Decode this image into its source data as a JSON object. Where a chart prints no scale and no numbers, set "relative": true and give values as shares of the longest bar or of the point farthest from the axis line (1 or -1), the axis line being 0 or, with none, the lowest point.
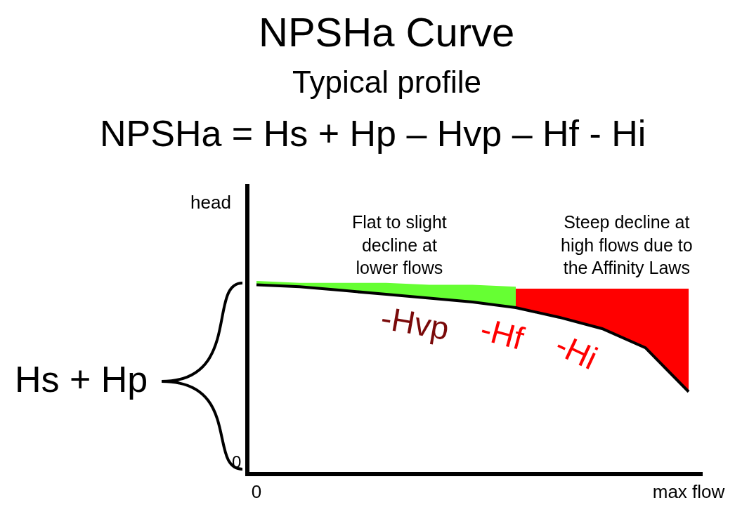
{
  "chart_data": {
    "type": "line",
    "relative": true,
    "title": "NPSHa Curve",
    "subtitle": "Typical profile",
    "ylabel": "head",
    "categories": [
      "0",
      null,
      null,
      null,
      null,
      null,
      null,
      null,
      null,
      null,
      "max flow"
    ],
    "series": [
      {
        "type": "area",
        "color": "#66ff33",
        "values": [
          1.0,
          0.99,
          0.99,
          0.99,
          0.98,
          0.98,
          0.97,
          null,
          null,
          null,
          null
        ]
      },
      {
        "type": "area",
        "color": "#ff0000",
        "values": [
          null,
          null,
          null,
          null,
          null,
          null,
          0.96,
          0.96,
          0.96,
          0.96,
          0.96
        ]
      },
      {
        "color": "#000000",
        "values": [
          0.98,
          0.97,
          0.95,
          0.93,
          0.91,
          0.89,
          0.86,
          0.81,
          0.75,
          0.65,
          0.42
        ]
      }
    ],
    "annotations": [
      "NPSHa = Hs + Hp – Hvp – Hf - Hi",
      "Flat to slight decline at lower flows",
      "Steep decline at high flows due to the Affinity Laws",
      "-Hvp",
      "-Hf",
      "-Hi",
      "Hs + Hp",
      "0"
    ]
  }
}
